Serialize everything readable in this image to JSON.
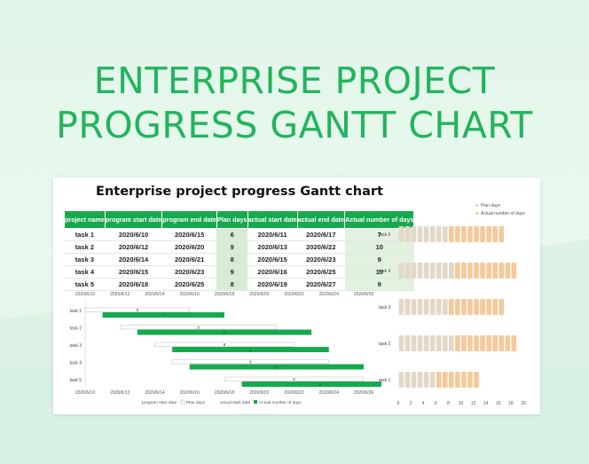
{
  "hero": {
    "line1": "ENTERPRISE PROJECT",
    "line2": "PROGRESS GANTT CHART"
  },
  "sheet": {
    "title": "Enterprise project progress Gantt chart",
    "headers": [
      "project name",
      "program start date",
      "program end date",
      "Plan days",
      "actual start date",
      "actual end date",
      "Actual number of days"
    ],
    "rows": [
      {
        "task": "task 1",
        "ps": "2020/6/10",
        "pe": "2020/6/15",
        "plan": "6",
        "as": "2020/6/11",
        "ae": "2020/6/17",
        "actual": "7"
      },
      {
        "task": "task 2",
        "ps": "2020/6/12",
        "pe": "2020/6/20",
        "plan": "9",
        "as": "2020/6/13",
        "ae": "2020/6/22",
        "actual": "10"
      },
      {
        "task": "task 3",
        "ps": "2020/6/14",
        "pe": "2020/6/21",
        "plan": "8",
        "as": "2020/6/15",
        "ae": "2020/6/23",
        "actual": "9"
      },
      {
        "task": "task 4",
        "ps": "2020/6/15",
        "pe": "2020/6/23",
        "plan": "9",
        "as": "2020/6/16",
        "ae": "2020/6/25",
        "actual": "10"
      },
      {
        "task": "task 5",
        "ps": "2020/6/18",
        "pe": "2020/6/25",
        "plan": "8",
        "as": "2020/6/19",
        "ae": "2020/6/27",
        "actual": "9"
      }
    ]
  },
  "colors": {
    "green": "#17a94e",
    "title": "#23b35d",
    "plan": "#e2d8c6",
    "actual": "#f5c99a",
    "light": "#d7ecd5"
  },
  "chart_data": [
    {
      "type": "bar",
      "orientation": "horizontal",
      "x_ticks": [
        "2020/6/10",
        "2020/6/12",
        "2020/6/14",
        "2020/6/16",
        "2020/6/18",
        "2020/6/20",
        "2020/6/22",
        "2020/6/24",
        "2020/6/26"
      ],
      "x_ticks_bottom": [
        "2020/6/10",
        "2020/6/12",
        "2020/6/14",
        "2020/6/16",
        "2020/6/18",
        "2020/6/20",
        "2020/6/22",
        "2020/6/24",
        "2020/6/26"
      ],
      "categories": [
        "task 1",
        "task 2",
        "task 3",
        "task 4",
        "task 5"
      ],
      "xlim": [
        "2020/6/10",
        "2020/6/27"
      ],
      "plan_start": [
        "2020/6/10",
        "2020/6/12",
        "2020/6/14",
        "2020/6/15",
        "2020/6/18"
      ],
      "plan_days": [
        6,
        9,
        8,
        9,
        8
      ],
      "actual_start": [
        "2020/6/11",
        "2020/6/13",
        "2020/6/15",
        "2020/6/16",
        "2020/6/19"
      ],
      "actual_days": [
        7,
        10,
        9,
        10,
        9
      ],
      "legend": [
        "program start date",
        "Plan days",
        "actual start date",
        "Actual number of days"
      ],
      "legend_position": "bottom"
    },
    {
      "type": "bar",
      "orientation": "horizontal",
      "stacked": true,
      "categories": [
        "task 5",
        "task 4",
        "task 3",
        "task 2",
        "task 1"
      ],
      "series": [
        {
          "name": "Plan days",
          "values": [
            8,
            9,
            8,
            9,
            6
          ]
        },
        {
          "name": "Actual number of days",
          "values": [
            9,
            10,
            9,
            10,
            7
          ]
        }
      ],
      "x_ticks": [
        "0",
        "2",
        "4",
        "6",
        "8",
        "10",
        "12",
        "14",
        "16",
        "18",
        "20"
      ],
      "xlim": [
        0,
        20
      ],
      "legend_position": "top-right"
    }
  ]
}
